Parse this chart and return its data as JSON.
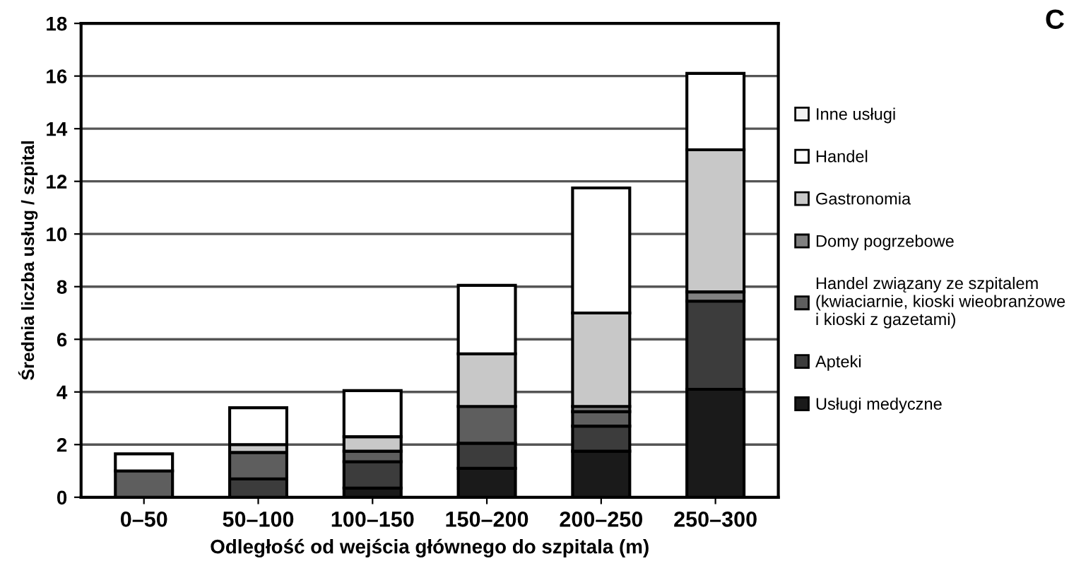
{
  "chart_data": {
    "type": "bar",
    "stacked": true,
    "xlabel": "Odległość od wejścia głównego do szpitala (m)",
    "ylabel": "Średnia liczba usług / szpital",
    "categories": [
      "0–50",
      "50–100",
      "100–150",
      "150–200",
      "200–250",
      "250–300"
    ],
    "series": [
      {
        "name": "Usługi medyczne",
        "color": "#1a1a1a",
        "values": [
          0,
          0,
          0.35,
          1.1,
          1.75,
          4.1
        ]
      },
      {
        "name": "Apteki",
        "color": "#3c3c3c",
        "values": [
          0,
          0.7,
          1.0,
          0.95,
          0.95,
          3.35
        ]
      },
      {
        "name": "Handel związany ze szpitalem\n(kwiaciarnie, kioski wieobranżowe\ni kioski z gazetami)",
        "color": "#5e5e5e",
        "values": [
          1.0,
          1.0,
          0.4,
          1.4,
          0.55,
          0
        ]
      },
      {
        "name": "Domy pogrzebowe",
        "color": "#808080",
        "values": [
          0,
          0,
          0,
          0,
          0.2,
          0.35
        ]
      },
      {
        "name": "Gastronomia",
        "color": "#c8c8c8",
        "values": [
          0,
          0.3,
          0.55,
          2.0,
          3.55,
          5.4
        ]
      },
      {
        "name": "Handel",
        "color": "#ffffff",
        "values": [
          0.65,
          1.4,
          1.75,
          2.6,
          4.75,
          2.9
        ]
      },
      {
        "name": "Inne usługi",
        "color": "#f2f2f2",
        "values": [
          0,
          0,
          0,
          0,
          0,
          0
        ]
      }
    ],
    "ylim": [
      0,
      18
    ],
    "yticks": [
      0,
      2,
      4,
      6,
      8,
      10,
      12,
      14,
      16,
      18
    ],
    "grid": "y",
    "legend": "right",
    "annotations": [
      "C"
    ]
  }
}
